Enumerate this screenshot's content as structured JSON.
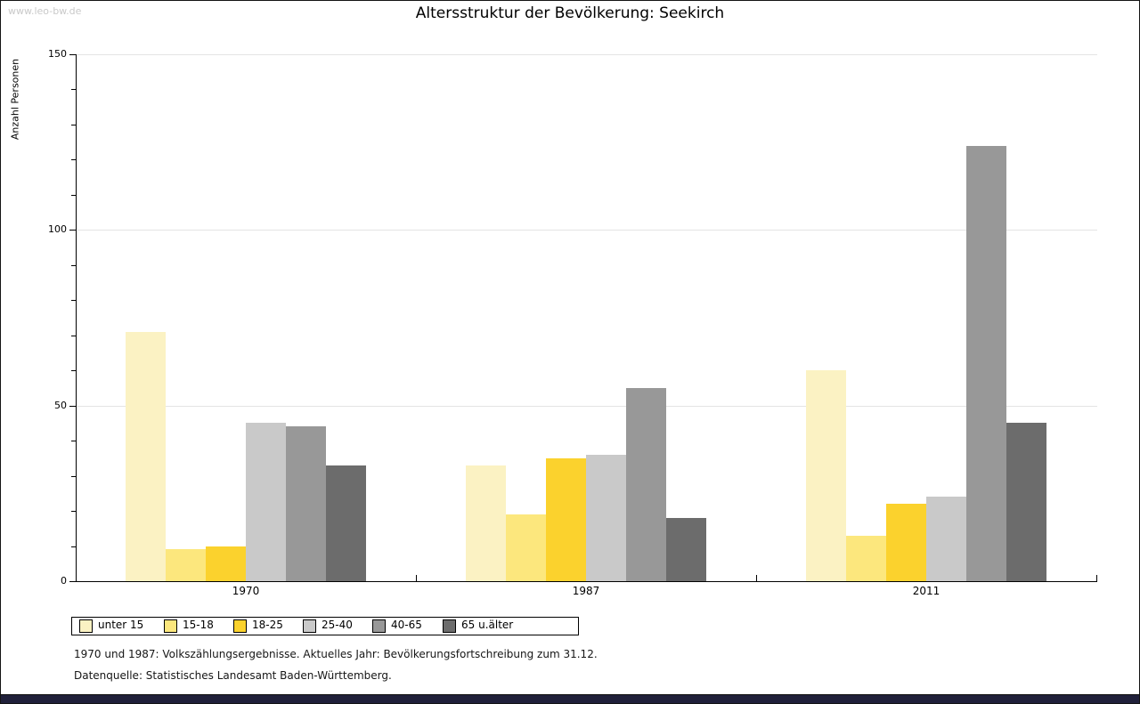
{
  "page": {
    "watermark": "www.leo-bw.de"
  },
  "chart_data": {
    "type": "bar",
    "title": "Altersstruktur der Bevölkerung: Seekirch",
    "ylabel": "Anzahl Personen",
    "xlabel": "",
    "categories": [
      "1970",
      "1987",
      "2011"
    ],
    "series": [
      {
        "name": "unter 15",
        "color": "#fbf2c3",
        "values": [
          71,
          33,
          60
        ]
      },
      {
        "name": "15-18",
        "color": "#fce77d",
        "values": [
          9,
          19,
          13
        ]
      },
      {
        "name": "18-25",
        "color": "#fbd22d",
        "values": [
          10,
          35,
          22
        ]
      },
      {
        "name": "25-40",
        "color": "#c9c9c9",
        "values": [
          45,
          36,
          24
        ]
      },
      {
        "name": "40-65",
        "color": "#989898",
        "values": [
          44,
          55,
          124
        ]
      },
      {
        "name": "65 u.älter",
        "color": "#6c6c6c",
        "values": [
          33,
          18,
          45
        ]
      }
    ],
    "ylim": [
      0,
      150
    ],
    "yticks": [
      0,
      50,
      100,
      150
    ],
    "minor_tick_step": 10,
    "grid": true,
    "legend_position": "bottom"
  },
  "footnotes": [
    "1970 und 1987: Volkszählungsergebnisse. Aktuelles Jahr: Bevölkerungsfortschreibung zum 31.12.",
    "Datenquelle: Statistisches Landesamt Baden-Württemberg."
  ]
}
